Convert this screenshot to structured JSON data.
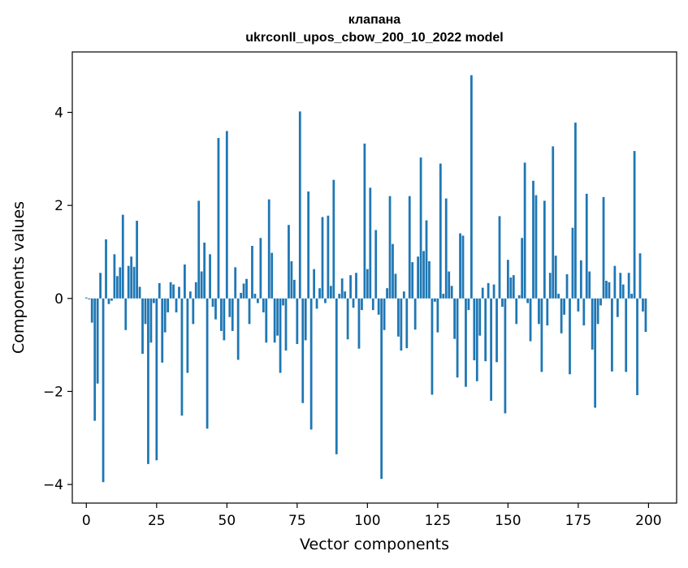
{
  "chart_data": {
    "type": "bar",
    "title_line1": "клапана",
    "title_line2": "ukrconll_upos_cbow_200_10_2022 model",
    "xlabel": "Vector components",
    "ylabel": "Components values",
    "xlim": [
      -5,
      210
    ],
    "ylim": [
      -4.4,
      5.3
    ],
    "xticks": [
      0,
      25,
      50,
      75,
      100,
      125,
      150,
      175,
      200
    ],
    "xtick_labels": [
      "0",
      "25",
      "50",
      "75",
      "100",
      "125",
      "150",
      "175",
      "200"
    ],
    "yticks": [
      -4,
      -2,
      0,
      2,
      4
    ],
    "ytick_labels": [
      "−4",
      "−2",
      "0",
      "2",
      "4"
    ],
    "bar_color": "#1f77b4",
    "grid": false,
    "x": [
      0,
      1,
      2,
      3,
      4,
      5,
      6,
      7,
      8,
      9,
      10,
      11,
      12,
      13,
      14,
      15,
      16,
      17,
      18,
      19,
      20,
      21,
      22,
      23,
      24,
      25,
      26,
      27,
      28,
      29,
      30,
      31,
      32,
      33,
      34,
      35,
      36,
      37,
      38,
      39,
      40,
      41,
      42,
      43,
      44,
      45,
      46,
      47,
      48,
      49,
      50,
      51,
      52,
      53,
      54,
      55,
      56,
      57,
      58,
      59,
      60,
      61,
      62,
      63,
      64,
      65,
      66,
      67,
      68,
      69,
      70,
      71,
      72,
      73,
      74,
      75,
      76,
      77,
      78,
      79,
      80,
      81,
      82,
      83,
      84,
      85,
      86,
      87,
      88,
      89,
      90,
      91,
      92,
      93,
      94,
      95,
      96,
      97,
      98,
      99,
      100,
      101,
      102,
      103,
      104,
      105,
      106,
      107,
      108,
      109,
      110,
      111,
      112,
      113,
      114,
      115,
      116,
      117,
      118,
      119,
      120,
      121,
      122,
      123,
      124,
      125,
      126,
      127,
      128,
      129,
      130,
      131,
      132,
      133,
      134,
      135,
      136,
      137,
      138,
      139,
      140,
      141,
      142,
      143,
      144,
      145,
      146,
      147,
      148,
      149,
      150,
      151,
      152,
      153,
      154,
      155,
      156,
      157,
      158,
      159,
      160,
      161,
      162,
      163,
      164,
      165,
      166,
      167,
      168,
      169,
      170,
      171,
      172,
      173,
      174,
      175,
      176,
      177,
      178,
      179,
      180,
      181,
      182,
      183,
      184,
      185,
      186,
      187,
      188,
      189,
      190,
      191,
      192,
      193,
      194,
      195,
      196,
      197,
      198,
      199
    ],
    "values": [
      0.02,
      -0.02,
      -0.52,
      -2.63,
      -1.83,
      0.55,
      -3.95,
      1.27,
      -0.12,
      -0.05,
      0.95,
      0.48,
      0.67,
      1.8,
      -0.68,
      0.7,
      0.9,
      0.68,
      1.67,
      0.25,
      -1.19,
      -0.55,
      -3.56,
      -0.95,
      -0.1,
      -3.48,
      0.33,
      -1.38,
      -0.73,
      -0.3,
      0.35,
      0.3,
      -0.3,
      0.25,
      -2.52,
      0.73,
      -1.6,
      0.15,
      -0.55,
      0.35,
      2.1,
      0.58,
      1.2,
      -2.8,
      0.95,
      -0.18,
      -0.45,
      3.45,
      -0.7,
      -0.9,
      3.6,
      -0.4,
      -0.7,
      0.67,
      -1.32,
      0.12,
      0.32,
      0.42,
      -0.55,
      1.13,
      0.1,
      -0.1,
      1.3,
      -0.3,
      -0.95,
      2.13,
      0.98,
      -0.95,
      -0.8,
      -1.6,
      -0.15,
      -1.12,
      1.58,
      0.8,
      0.4,
      -0.98,
      4.02,
      -2.25,
      -0.9,
      2.3,
      -2.82,
      0.63,
      -0.22,
      0.22,
      1.75,
      -0.1,
      1.78,
      0.27,
      2.55,
      -3.35,
      0.1,
      0.43,
      0.15,
      -0.88,
      0.5,
      -0.2,
      0.55,
      -1.08,
      -0.25,
      3.33,
      0.63,
      2.38,
      -0.25,
      1.47,
      -0.35,
      -3.88,
      -0.68,
      0.22,
      2.2,
      1.17,
      0.53,
      -0.82,
      -1.12,
      0.15,
      -1.07,
      2.2,
      0.78,
      -0.67,
      0.9,
      3.03,
      1.02,
      1.68,
      0.8,
      -2.07,
      -0.07,
      -0.73,
      2.9,
      0.1,
      2.15,
      0.58,
      0.27,
      -0.87,
      -1.7,
      1.4,
      1.35,
      -1.9,
      -0.25,
      4.8,
      -1.33,
      -1.78,
      -0.8,
      0.23,
      -1.35,
      0.33,
      -2.2,
      0.3,
      -1.37,
      1.77,
      -0.18,
      -2.47,
      0.83,
      0.45,
      0.5,
      -0.55,
      0.07,
      1.3,
      2.92,
      -0.1,
      -0.92,
      2.53,
      2.22,
      -0.55,
      -1.58,
      2.1,
      -0.58,
      0.55,
      3.27,
      0.92,
      0.1,
      -0.75,
      -0.35,
      0.52,
      -1.63,
      1.52,
      3.78,
      -0.28,
      0.82,
      -0.58,
      2.25,
      0.58,
      -1.1,
      -2.35,
      -0.55,
      -0.15,
      2.18,
      0.38,
      0.35,
      -1.57,
      0.7,
      -0.4,
      0.55,
      0.3,
      -1.58,
      0.55,
      0.1,
      3.17,
      -2.08,
      0.97,
      -0.28,
      -0.72
    ]
  }
}
